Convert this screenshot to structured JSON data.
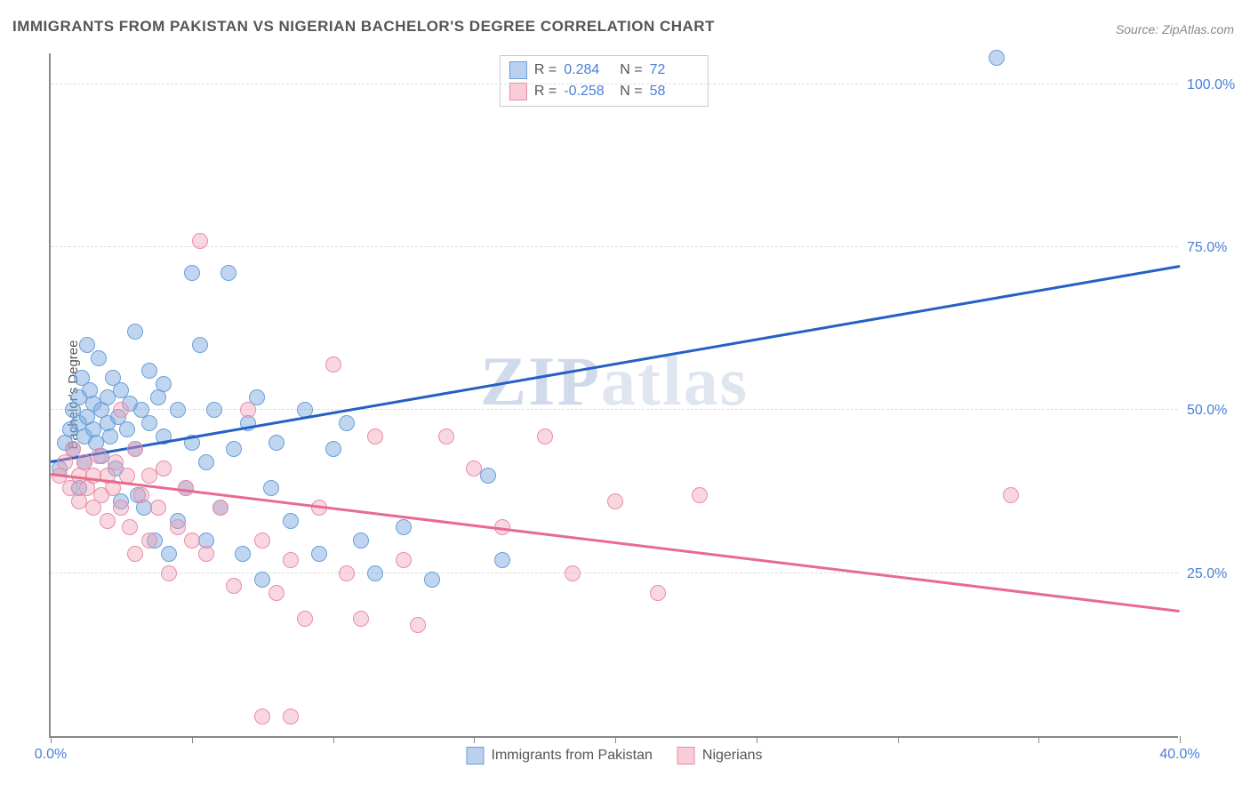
{
  "title": "IMMIGRANTS FROM PAKISTAN VS NIGERIAN BACHELOR'S DEGREE CORRELATION CHART",
  "source_prefix": "Source: ",
  "source_name": "ZipAtlas.com",
  "y_axis_label": "Bachelor's Degree",
  "watermark_zip": "ZIP",
  "watermark_atlas": "atlas",
  "chart": {
    "type": "scatter",
    "xlim": [
      0,
      40
    ],
    "ylim": [
      0,
      105
    ],
    "x_ticks": [
      0,
      5,
      10,
      15,
      20,
      25,
      30,
      35,
      40
    ],
    "y_ticks": [
      25,
      50,
      75,
      100
    ],
    "x_tick_labels": {
      "0": "0.0%",
      "40": "40.0%"
    },
    "y_tick_labels": {
      "25": "25.0%",
      "50": "50.0%",
      "75": "75.0%",
      "100": "100.0%"
    },
    "background_color": "#ffffff",
    "grid_color": "#dddddd",
    "axis_color": "#888888",
    "label_color": "#4a7fd6",
    "title_fontsize": 17,
    "tick_fontsize": 16,
    "marker_radius": 9,
    "series": [
      {
        "name": "Immigrants from Pakistan",
        "color_fill": "rgba(115,163,222,0.45)",
        "color_stroke": "#6a9fd9",
        "line_color": "#2560c4",
        "R": "0.284",
        "N": "72",
        "trend": {
          "x1": 0,
          "y1": 42,
          "x2": 40,
          "y2": 72
        },
        "points": [
          [
            0.3,
            41
          ],
          [
            0.5,
            45
          ],
          [
            0.7,
            47
          ],
          [
            0.8,
            50
          ],
          [
            0.8,
            44
          ],
          [
            1.0,
            52
          ],
          [
            1.0,
            48
          ],
          [
            1.1,
            55
          ],
          [
            1.2,
            46
          ],
          [
            1.2,
            42
          ],
          [
            1.3,
            49
          ],
          [
            1.4,
            53
          ],
          [
            1.5,
            47
          ],
          [
            1.5,
            51
          ],
          [
            1.6,
            45
          ],
          [
            1.7,
            58
          ],
          [
            1.8,
            50
          ],
          [
            1.8,
            43
          ],
          [
            2.0,
            48
          ],
          [
            2.0,
            52
          ],
          [
            2.1,
            46
          ],
          [
            2.2,
            55
          ],
          [
            2.3,
            41
          ],
          [
            2.4,
            49
          ],
          [
            2.5,
            53
          ],
          [
            2.5,
            36
          ],
          [
            2.7,
            47
          ],
          [
            2.8,
            51
          ],
          [
            3.0,
            44
          ],
          [
            3.0,
            62
          ],
          [
            3.1,
            37
          ],
          [
            3.2,
            50
          ],
          [
            3.3,
            35
          ],
          [
            3.5,
            56
          ],
          [
            3.5,
            48
          ],
          [
            3.7,
            30
          ],
          [
            3.8,
            52
          ],
          [
            4.0,
            46
          ],
          [
            4.0,
            54
          ],
          [
            4.2,
            28
          ],
          [
            4.5,
            50
          ],
          [
            4.5,
            33
          ],
          [
            4.8,
            38
          ],
          [
            5.0,
            71
          ],
          [
            5.0,
            45
          ],
          [
            5.3,
            60
          ],
          [
            5.5,
            42
          ],
          [
            5.5,
            30
          ],
          [
            5.8,
            50
          ],
          [
            6.0,
            35
          ],
          [
            6.3,
            71
          ],
          [
            6.5,
            44
          ],
          [
            6.8,
            28
          ],
          [
            7.0,
            48
          ],
          [
            7.3,
            52
          ],
          [
            7.5,
            24
          ],
          [
            7.8,
            38
          ],
          [
            8.0,
            45
          ],
          [
            8.5,
            33
          ],
          [
            9.0,
            50
          ],
          [
            9.5,
            28
          ],
          [
            10.0,
            44
          ],
          [
            10.5,
            48
          ],
          [
            11.0,
            30
          ],
          [
            11.5,
            25
          ],
          [
            12.5,
            32
          ],
          [
            13.5,
            24
          ],
          [
            15.5,
            40
          ],
          [
            16.0,
            27
          ],
          [
            1.0,
            38
          ],
          [
            1.3,
            60
          ],
          [
            33.5,
            104
          ]
        ]
      },
      {
        "name": "Nigerians",
        "color_fill": "rgba(241,155,177,0.4)",
        "color_stroke": "#e98da6",
        "line_color": "#e86a8f",
        "R": "-0.258",
        "N": "58",
        "trend": {
          "x1": 0,
          "y1": 40,
          "x2": 40,
          "y2": 19
        },
        "points": [
          [
            0.3,
            40
          ],
          [
            0.5,
            42
          ],
          [
            0.7,
            38
          ],
          [
            0.8,
            44
          ],
          [
            1.0,
            40
          ],
          [
            1.0,
            36
          ],
          [
            1.2,
            42
          ],
          [
            1.3,
            38
          ],
          [
            1.5,
            40
          ],
          [
            1.5,
            35
          ],
          [
            1.7,
            43
          ],
          [
            1.8,
            37
          ],
          [
            2.0,
            40
          ],
          [
            2.0,
            33
          ],
          [
            2.2,
            38
          ],
          [
            2.3,
            42
          ],
          [
            2.5,
            35
          ],
          [
            2.7,
            40
          ],
          [
            2.8,
            32
          ],
          [
            3.0,
            44
          ],
          [
            3.0,
            28
          ],
          [
            3.2,
            37
          ],
          [
            3.5,
            40
          ],
          [
            3.5,
            30
          ],
          [
            3.8,
            35
          ],
          [
            4.0,
            41
          ],
          [
            4.2,
            25
          ],
          [
            4.5,
            32
          ],
          [
            4.8,
            38
          ],
          [
            5.0,
            30
          ],
          [
            5.3,
            76
          ],
          [
            5.5,
            28
          ],
          [
            6.0,
            35
          ],
          [
            6.5,
            23
          ],
          [
            7.0,
            50
          ],
          [
            7.5,
            30
          ],
          [
            8.0,
            22
          ],
          [
            8.5,
            27
          ],
          [
            9.0,
            18
          ],
          [
            9.5,
            35
          ],
          [
            10.0,
            57
          ],
          [
            10.5,
            25
          ],
          [
            11.0,
            18
          ],
          [
            11.5,
            46
          ],
          [
            12.5,
            27
          ],
          [
            13.0,
            17
          ],
          [
            14.0,
            46
          ],
          [
            15.0,
            41
          ],
          [
            16.0,
            32
          ],
          [
            17.5,
            46
          ],
          [
            18.5,
            25
          ],
          [
            20.0,
            36
          ],
          [
            21.5,
            22
          ],
          [
            23.0,
            37
          ],
          [
            7.5,
            3
          ],
          [
            8.5,
            3
          ],
          [
            34.0,
            37
          ],
          [
            2.5,
            50
          ]
        ]
      }
    ]
  },
  "legend_top": {
    "R_label": "R = ",
    "N_label": "N = "
  }
}
